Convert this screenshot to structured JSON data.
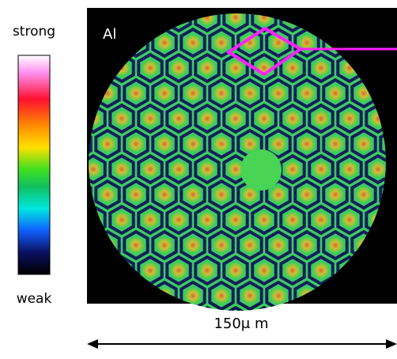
{
  "colorbar": {
    "top_label": "strong",
    "bottom_label": "weak"
  },
  "image": {
    "label": "Al"
  },
  "scale_bar": {
    "label": "150μ m"
  }
}
